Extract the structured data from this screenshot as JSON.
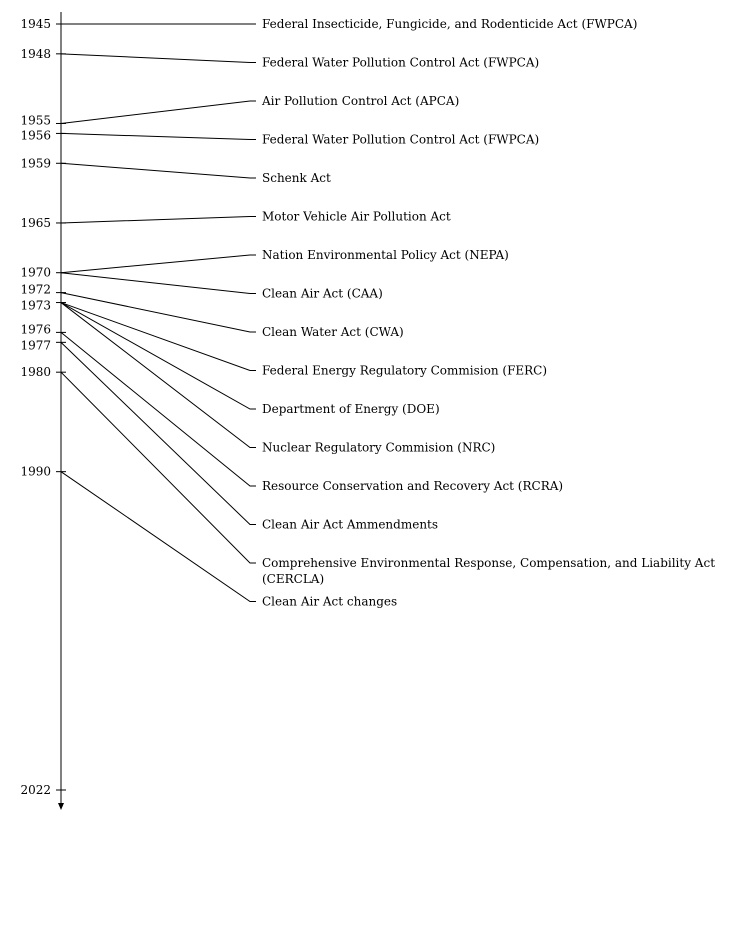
{
  "timeline": {
    "start_year": 1945,
    "end_year": 2022,
    "years": [
      "1945",
      "1948",
      "1955",
      "1956",
      "1959",
      "1965",
      "1970",
      "1972",
      "1973",
      "1976",
      "1977",
      "1980",
      "1990",
      "2022"
    ],
    "events": [
      {
        "year": 1945,
        "label": "Federal Insecticide, Fungicide, and Rodenticide Act (FWPCA)"
      },
      {
        "year": 1948,
        "label": "Federal Water Pollution Control Act (FWPCA)"
      },
      {
        "year": 1955,
        "label": "Air Pollution Control Act (APCA)"
      },
      {
        "year": 1956,
        "label": "Federal Water Pollution Control Act (FWPCA)"
      },
      {
        "year": 1959,
        "label": "Schenk Act"
      },
      {
        "year": 1965,
        "label": "Motor Vehicle Air Pollution Act"
      },
      {
        "year": 1970,
        "label": "Nation Environmental Policy Act (NEPA)"
      },
      {
        "year": 1970,
        "label": "Clean Air Act (CAA)"
      },
      {
        "year": 1972,
        "label": "Clean Water Act (CWA)"
      },
      {
        "year": 1973,
        "label": "Federal Energy Regulatory Commision (FERC)"
      },
      {
        "year": 1973,
        "label": "Department of Energy (DOE)"
      },
      {
        "year": 1973,
        "label": "Nuclear Regulatory Commision (NRC)"
      },
      {
        "year": 1976,
        "label": "Resource Conservation and Recovery Act (RCRA)"
      },
      {
        "year": 1977,
        "label": "Clean Air Act Ammendments"
      },
      {
        "year": 1980,
        "label": "Comprehensive Environmental Response, Compensation, and Liability Act (CERCLA)"
      },
      {
        "year": 1990,
        "label": "Clean Air Act changes"
      }
    ]
  }
}
